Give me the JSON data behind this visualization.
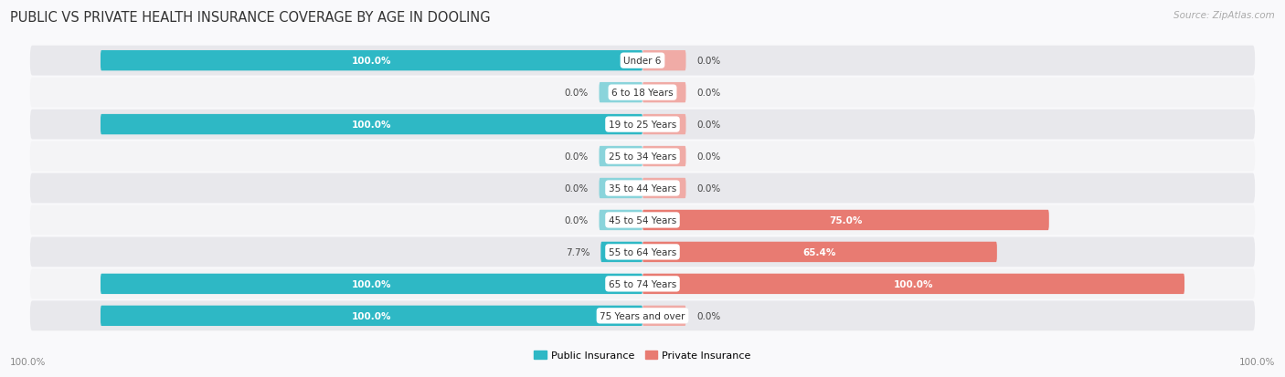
{
  "title": "PUBLIC VS PRIVATE HEALTH INSURANCE COVERAGE BY AGE IN DOOLING",
  "source": "Source: ZipAtlas.com",
  "categories": [
    "Under 6",
    "6 to 18 Years",
    "19 to 25 Years",
    "25 to 34 Years",
    "35 to 44 Years",
    "45 to 54 Years",
    "55 to 64 Years",
    "65 to 74 Years",
    "75 Years and over"
  ],
  "public_values": [
    100.0,
    0.0,
    100.0,
    0.0,
    0.0,
    0.0,
    7.7,
    100.0,
    100.0
  ],
  "private_values": [
    0.0,
    0.0,
    0.0,
    0.0,
    0.0,
    75.0,
    65.4,
    100.0,
    0.0
  ],
  "public_color": "#2eb8c5",
  "private_color": "#e87b72",
  "public_stub_color": "#8ad4db",
  "private_stub_color": "#f0aba6",
  "row_bg_dark": "#e8e8ec",
  "row_bg_light": "#f4f4f6",
  "bg_color": "#f9f9fb",
  "label_white": "#ffffff",
  "label_dark": "#444444",
  "axis_label_left": "100.0%",
  "axis_label_right": "100.0%",
  "legend_public": "Public Insurance",
  "legend_private": "Private Insurance",
  "title_fontsize": 10.5,
  "source_fontsize": 7.5,
  "bar_label_fontsize": 7.5,
  "cat_label_fontsize": 7.5,
  "legend_fontsize": 8,
  "axis_fontsize": 7.5,
  "max_val": 100,
  "stub_size": 8
}
